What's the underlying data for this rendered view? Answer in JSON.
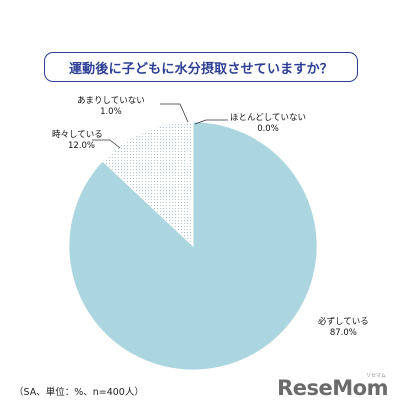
{
  "title": "運動後に子どもに水分摂取させていますか？",
  "footnote": "（SA、単位：%、n=400人）",
  "logo": "ReseMom",
  "logo_sub": "リセマム",
  "chart_data": {
    "type": "pie",
    "categories": [
      "必ずしている",
      "時々している",
      "あまりしていない",
      "ほとんどしていない"
    ],
    "values": [
      87.0,
      12.0,
      1.0,
      0.0
    ],
    "value_labels": [
      "87.0%",
      "12.0%",
      "1.0%",
      "0.0%"
    ],
    "colors": [
      "#abd5df",
      "#ffffff",
      "#ffffff",
      "#ffffff"
    ],
    "fills": [
      "solid",
      "dotted",
      "dotted",
      "none"
    ],
    "title": "運動後に子どもに水分摂取させていますか？",
    "legend": "none"
  }
}
